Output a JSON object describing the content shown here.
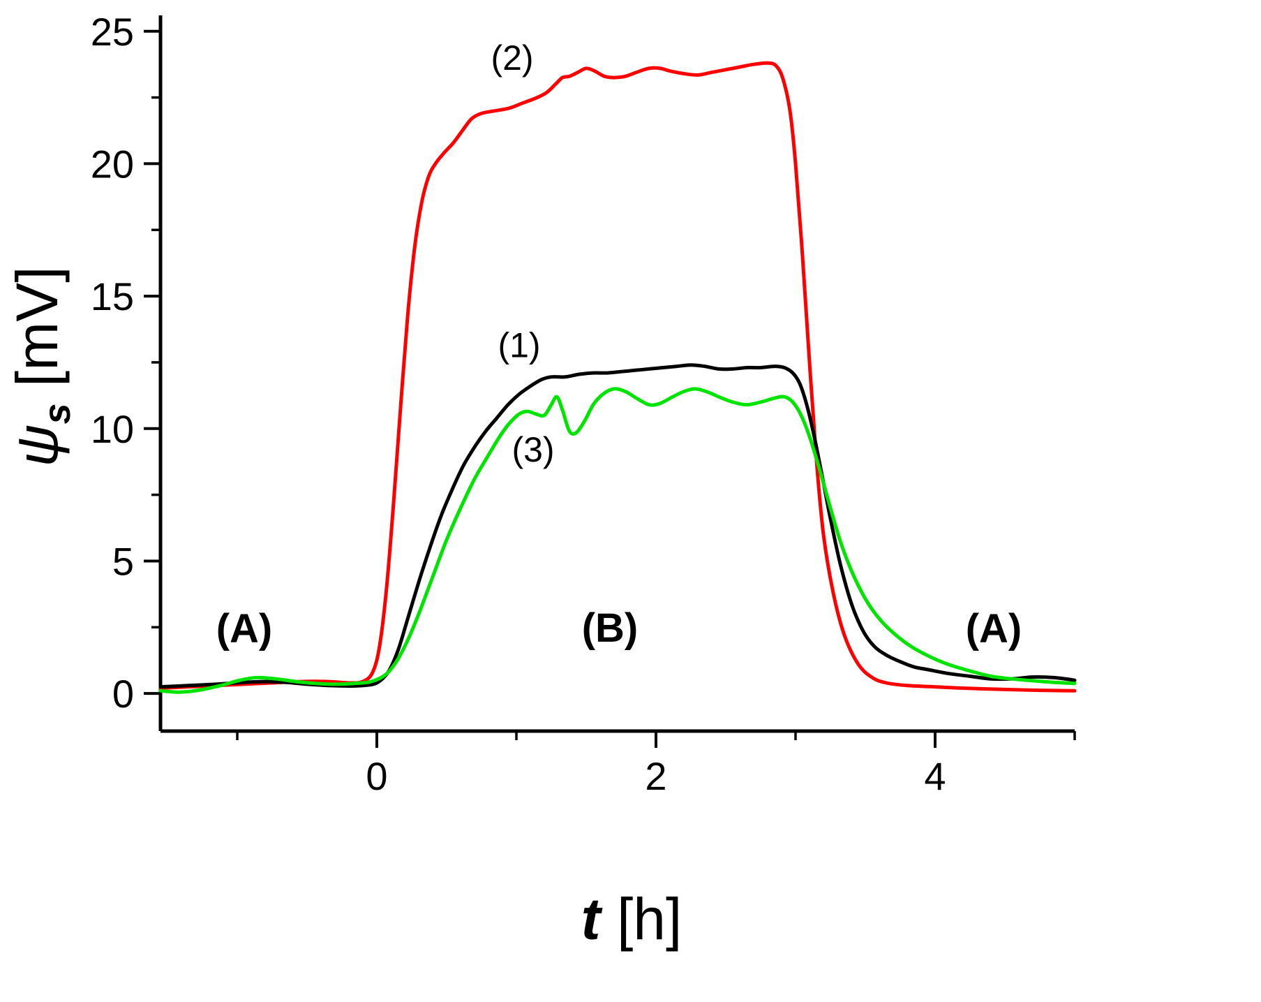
{
  "figure": {
    "background": "#ffffff",
    "axis_color": "#000000"
  },
  "chart_data": {
    "type": "line",
    "title": "",
    "xlabel": {
      "symbol": "t",
      "rest": " [h]"
    },
    "ylabel": {
      "symbol": "ψ",
      "subscript": "s",
      "rest": " [mV]"
    },
    "xlim": [
      -1.55,
      5.0
    ],
    "ylim": [
      -1.42,
      25.6
    ],
    "x_ticks": {
      "major": [
        0,
        2,
        4
      ],
      "labels": [
        "0",
        "2",
        "4"
      ],
      "minor": [
        -1,
        1,
        3,
        5
      ]
    },
    "y_ticks": {
      "major": [
        0,
        5,
        10,
        15,
        20,
        25
      ],
      "labels": [
        "0",
        "5",
        "10",
        "15",
        "20",
        "25"
      ],
      "minor": [
        2.5,
        7.5,
        12.5,
        17.5,
        22.5
      ]
    },
    "grid": false,
    "legend": "none",
    "series": [
      {
        "name": "(2)",
        "color": "#fe0000",
        "width": 5,
        "points": [
          [
            -1.55,
            0.2
          ],
          [
            -1.35,
            0.25
          ],
          [
            -1.15,
            0.3
          ],
          [
            -0.95,
            0.35
          ],
          [
            -0.75,
            0.4
          ],
          [
            -0.55,
            0.45
          ],
          [
            -0.35,
            0.45
          ],
          [
            -0.2,
            0.4
          ],
          [
            -0.1,
            0.45
          ],
          [
            -0.03,
            0.8
          ],
          [
            0.02,
            1.8
          ],
          [
            0.07,
            4.0
          ],
          [
            0.12,
            7.2
          ],
          [
            0.17,
            10.8
          ],
          [
            0.22,
            14.2
          ],
          [
            0.27,
            16.8
          ],
          [
            0.32,
            18.5
          ],
          [
            0.37,
            19.5
          ],
          [
            0.42,
            20.0
          ],
          [
            0.48,
            20.4
          ],
          [
            0.55,
            20.8
          ],
          [
            0.62,
            21.3
          ],
          [
            0.68,
            21.7
          ],
          [
            0.75,
            21.9
          ],
          [
            0.85,
            22.0
          ],
          [
            0.95,
            22.1
          ],
          [
            1.05,
            22.3
          ],
          [
            1.15,
            22.5
          ],
          [
            1.22,
            22.7
          ],
          [
            1.28,
            23.0
          ],
          [
            1.33,
            23.25
          ],
          [
            1.38,
            23.3
          ],
          [
            1.44,
            23.45
          ],
          [
            1.5,
            23.6
          ],
          [
            1.56,
            23.5
          ],
          [
            1.63,
            23.3
          ],
          [
            1.7,
            23.25
          ],
          [
            1.78,
            23.3
          ],
          [
            1.86,
            23.45
          ],
          [
            1.95,
            23.6
          ],
          [
            2.03,
            23.6
          ],
          [
            2.1,
            23.5
          ],
          [
            2.2,
            23.4
          ],
          [
            2.3,
            23.35
          ],
          [
            2.4,
            23.45
          ],
          [
            2.5,
            23.55
          ],
          [
            2.6,
            23.65
          ],
          [
            2.7,
            23.75
          ],
          [
            2.8,
            23.8
          ],
          [
            2.86,
            23.7
          ],
          [
            2.91,
            23.2
          ],
          [
            2.96,
            22.0
          ],
          [
            3.0,
            20.0
          ],
          [
            3.05,
            16.5
          ],
          [
            3.1,
            12.5
          ],
          [
            3.15,
            8.8
          ],
          [
            3.2,
            6.0
          ],
          [
            3.27,
            3.8
          ],
          [
            3.35,
            2.2
          ],
          [
            3.45,
            1.1
          ],
          [
            3.55,
            0.6
          ],
          [
            3.65,
            0.4
          ],
          [
            3.8,
            0.3
          ],
          [
            4.0,
            0.25
          ],
          [
            4.2,
            0.2
          ],
          [
            4.5,
            0.15
          ],
          [
            4.75,
            0.12
          ],
          [
            5.0,
            0.1
          ]
        ]
      },
      {
        "name": "(1)",
        "color": "#000000",
        "width": 5,
        "points": [
          [
            -1.55,
            0.25
          ],
          [
            -1.35,
            0.3
          ],
          [
            -1.15,
            0.35
          ],
          [
            -0.95,
            0.42
          ],
          [
            -0.8,
            0.45
          ],
          [
            -0.65,
            0.42
          ],
          [
            -0.5,
            0.35
          ],
          [
            -0.35,
            0.3
          ],
          [
            -0.2,
            0.28
          ],
          [
            -0.1,
            0.3
          ],
          [
            0.0,
            0.4
          ],
          [
            0.08,
            0.8
          ],
          [
            0.15,
            1.6
          ],
          [
            0.22,
            2.8
          ],
          [
            0.3,
            4.2
          ],
          [
            0.38,
            5.5
          ],
          [
            0.46,
            6.7
          ],
          [
            0.54,
            7.7
          ],
          [
            0.62,
            8.6
          ],
          [
            0.7,
            9.3
          ],
          [
            0.78,
            9.9
          ],
          [
            0.86,
            10.4
          ],
          [
            0.94,
            10.9
          ],
          [
            1.02,
            11.3
          ],
          [
            1.1,
            11.6
          ],
          [
            1.18,
            11.85
          ],
          [
            1.25,
            11.95
          ],
          [
            1.35,
            11.95
          ],
          [
            1.45,
            12.05
          ],
          [
            1.55,
            12.1
          ],
          [
            1.65,
            12.1
          ],
          [
            1.75,
            12.15
          ],
          [
            1.85,
            12.2
          ],
          [
            1.95,
            12.25
          ],
          [
            2.05,
            12.3
          ],
          [
            2.15,
            12.35
          ],
          [
            2.25,
            12.4
          ],
          [
            2.35,
            12.35
          ],
          [
            2.45,
            12.25
          ],
          [
            2.55,
            12.25
          ],
          [
            2.65,
            12.3
          ],
          [
            2.75,
            12.3
          ],
          [
            2.85,
            12.35
          ],
          [
            2.92,
            12.3
          ],
          [
            2.98,
            12.1
          ],
          [
            3.03,
            11.7
          ],
          [
            3.08,
            10.9
          ],
          [
            3.13,
            9.8
          ],
          [
            3.18,
            8.5
          ],
          [
            3.25,
            6.6
          ],
          [
            3.32,
            4.9
          ],
          [
            3.4,
            3.4
          ],
          [
            3.48,
            2.4
          ],
          [
            3.56,
            1.8
          ],
          [
            3.65,
            1.45
          ],
          [
            3.75,
            1.2
          ],
          [
            3.85,
            1.0
          ],
          [
            3.95,
            0.9
          ],
          [
            4.1,
            0.75
          ],
          [
            4.25,
            0.65
          ],
          [
            4.4,
            0.55
          ],
          [
            4.55,
            0.55
          ],
          [
            4.7,
            0.62
          ],
          [
            4.85,
            0.6
          ],
          [
            5.0,
            0.5
          ]
        ]
      },
      {
        "name": "(3)",
        "color": "#00e400",
        "width": 5,
        "points": [
          [
            -1.55,
            0.1
          ],
          [
            -1.42,
            0.05
          ],
          [
            -1.28,
            0.12
          ],
          [
            -1.12,
            0.3
          ],
          [
            -0.98,
            0.5
          ],
          [
            -0.86,
            0.6
          ],
          [
            -0.72,
            0.55
          ],
          [
            -0.58,
            0.45
          ],
          [
            -0.44,
            0.38
          ],
          [
            -0.3,
            0.35
          ],
          [
            -0.16,
            0.38
          ],
          [
            -0.04,
            0.45
          ],
          [
            0.06,
            0.7
          ],
          [
            0.14,
            1.2
          ],
          [
            0.22,
            2.0
          ],
          [
            0.3,
            3.0
          ],
          [
            0.4,
            4.4
          ],
          [
            0.5,
            5.8
          ],
          [
            0.6,
            7.0
          ],
          [
            0.7,
            8.1
          ],
          [
            0.8,
            9.0
          ],
          [
            0.88,
            9.7
          ],
          [
            0.95,
            10.2
          ],
          [
            1.02,
            10.55
          ],
          [
            1.08,
            10.65
          ],
          [
            1.14,
            10.55
          ],
          [
            1.2,
            10.5
          ],
          [
            1.25,
            10.9
          ],
          [
            1.29,
            11.2
          ],
          [
            1.33,
            10.7
          ],
          [
            1.38,
            9.9
          ],
          [
            1.43,
            9.85
          ],
          [
            1.49,
            10.3
          ],
          [
            1.55,
            10.9
          ],
          [
            1.62,
            11.3
          ],
          [
            1.7,
            11.5
          ],
          [
            1.78,
            11.4
          ],
          [
            1.86,
            11.15
          ],
          [
            1.95,
            10.9
          ],
          [
            2.03,
            10.95
          ],
          [
            2.12,
            11.2
          ],
          [
            2.2,
            11.4
          ],
          [
            2.28,
            11.5
          ],
          [
            2.36,
            11.4
          ],
          [
            2.45,
            11.2
          ],
          [
            2.55,
            11.0
          ],
          [
            2.65,
            10.9
          ],
          [
            2.75,
            11.0
          ],
          [
            2.85,
            11.15
          ],
          [
            2.92,
            11.2
          ],
          [
            2.98,
            11.0
          ],
          [
            3.04,
            10.5
          ],
          [
            3.1,
            9.7
          ],
          [
            3.17,
            8.5
          ],
          [
            3.25,
            7.0
          ],
          [
            3.33,
            5.6
          ],
          [
            3.42,
            4.4
          ],
          [
            3.52,
            3.4
          ],
          [
            3.62,
            2.7
          ],
          [
            3.72,
            2.2
          ],
          [
            3.82,
            1.8
          ],
          [
            3.92,
            1.5
          ],
          [
            4.02,
            1.25
          ],
          [
            4.12,
            1.05
          ],
          [
            4.25,
            0.85
          ],
          [
            4.4,
            0.65
          ],
          [
            4.55,
            0.55
          ],
          [
            4.7,
            0.48
          ],
          [
            4.85,
            0.42
          ],
          [
            5.0,
            0.38
          ]
        ]
      }
    ],
    "annotations": [
      {
        "text": "(2)",
        "t": 0.97,
        "v": 23.55,
        "bold": false,
        "size": 50
      },
      {
        "text": "(1)",
        "t": 1.02,
        "v": 12.7,
        "bold": false,
        "size": 50
      },
      {
        "text": "(3)",
        "t": 1.12,
        "v": 8.75,
        "bold": false,
        "size": 50
      },
      {
        "text": "(A)",
        "t": -0.95,
        "v": 1.93,
        "bold": true,
        "size": 58
      },
      {
        "text": "(B)",
        "t": 1.67,
        "v": 1.95,
        "bold": true,
        "size": 58
      },
      {
        "text": "(A)",
        "t": 4.42,
        "v": 1.93,
        "bold": true,
        "size": 58
      }
    ]
  }
}
